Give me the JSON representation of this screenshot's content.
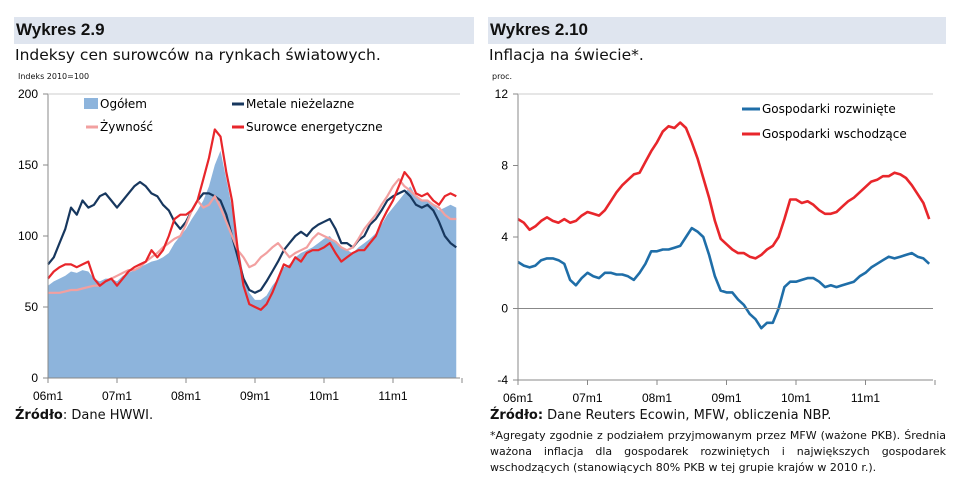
{
  "left": {
    "title": "Wykres 2.9",
    "subtitle": "Indeksy cen surowców na rynkach światowych.",
    "unit": "Indeks 2010=100",
    "source_label": "Źródło",
    "source_text": ": Dane HWWI."
  },
  "right": {
    "title": "Wykres 2.10",
    "subtitle": "Inflacja na świecie*.",
    "unit": "proc.",
    "source_label": "Źródło:",
    "source_text": " Dane Reuters Ecowin, MFW, obliczenia NBP.",
    "note": "*Agregaty zgodnie z podziałem przyjmowanym przez MFW (ważone PKB). Średnia ważona inflacja dla gospodarek rozwiniętych i największych gospodarek wschodzących (stanowiących 80% PKB w tej grupie krajów w 2010 r.)."
  },
  "chart_data": [
    {
      "type": "line",
      "title": "Indeksy cen surowców na rynkach światowych.",
      "ylabel": "Indeks 2010=100",
      "ylim": [
        0,
        200
      ],
      "yticks": [
        0,
        50,
        100,
        150,
        200
      ],
      "xticks": [
        "06m1",
        "07m1",
        "08m1",
        "09m1",
        "10m1",
        "11m1"
      ],
      "x_frequency": "monthly 2006-01..2011-12",
      "legend": "top",
      "series": [
        {
          "name": "Ogółem",
          "kind": "area",
          "color": "#8db4dc",
          "values": [
            65,
            68,
            70,
            72,
            75,
            74,
            76,
            75,
            70,
            68,
            70,
            70,
            68,
            72,
            74,
            76,
            78,
            80,
            82,
            83,
            85,
            88,
            95,
            100,
            105,
            112,
            118,
            125,
            135,
            150,
            160,
            140,
            120,
            95,
            72,
            60,
            55,
            55,
            58,
            65,
            70,
            78,
            80,
            85,
            88,
            90,
            92,
            95,
            98,
            100,
            95,
            92,
            90,
            88,
            92,
            95,
            98,
            102,
            108,
            115,
            120,
            125,
            130,
            135,
            128,
            125,
            125,
            122,
            118,
            120,
            122,
            120
          ]
        },
        {
          "name": "Metale nieżelazne",
          "kind": "line",
          "color": "#17375e",
          "values": [
            80,
            85,
            95,
            105,
            120,
            115,
            125,
            120,
            122,
            128,
            130,
            125,
            120,
            125,
            130,
            135,
            138,
            135,
            130,
            128,
            122,
            118,
            110,
            105,
            110,
            118,
            125,
            130,
            130,
            128,
            125,
            115,
            100,
            85,
            70,
            62,
            60,
            62,
            68,
            75,
            82,
            90,
            95,
            100,
            103,
            100,
            105,
            108,
            110,
            112,
            105,
            95,
            95,
            92,
            97,
            100,
            108,
            112,
            118,
            125,
            128,
            130,
            132,
            128,
            122,
            120,
            122,
            118,
            110,
            100,
            95,
            92
          ]
        },
        {
          "name": "Żywność",
          "kind": "line",
          "color": "#f2a0a0",
          "values": [
            60,
            60,
            60,
            61,
            62,
            62,
            63,
            64,
            65,
            65,
            68,
            70,
            72,
            74,
            76,
            76,
            78,
            82,
            85,
            88,
            92,
            95,
            98,
            100,
            108,
            118,
            125,
            120,
            122,
            128,
            120,
            110,
            100,
            90,
            85,
            78,
            80,
            85,
            88,
            92,
            95,
            90,
            85,
            88,
            90,
            92,
            98,
            102,
            100,
            98,
            96,
            92,
            90,
            92,
            98,
            105,
            110,
            115,
            122,
            128,
            135,
            140,
            135,
            132,
            128,
            125,
            125,
            122,
            120,
            115,
            112,
            112
          ]
        },
        {
          "name": "Surowce energetyczne",
          "kind": "line",
          "color": "#e8262b",
          "values": [
            70,
            75,
            78,
            80,
            80,
            78,
            80,
            82,
            70,
            65,
            68,
            70,
            65,
            70,
            75,
            78,
            80,
            82,
            90,
            85,
            90,
            100,
            112,
            115,
            115,
            118,
            125,
            140,
            155,
            175,
            170,
            145,
            125,
            90,
            65,
            52,
            50,
            48,
            52,
            60,
            70,
            80,
            78,
            85,
            82,
            88,
            90,
            90,
            92,
            95,
            88,
            82,
            85,
            88,
            90,
            90,
            95,
            100,
            110,
            118,
            125,
            135,
            145,
            140,
            130,
            128,
            130,
            125,
            122,
            128,
            130,
            128
          ]
        }
      ]
    },
    {
      "type": "line",
      "title": "Inflacja na świecie*.",
      "ylabel": "proc.",
      "ylim": [
        -4,
        12
      ],
      "yticks": [
        -4,
        0,
        4,
        8,
        12
      ],
      "xticks": [
        "06m1",
        "07m1",
        "08m1",
        "09m1",
        "10m1",
        "11m1"
      ],
      "x_frequency": "monthly 2006-01..2011-12",
      "legend": "top-right",
      "series": [
        {
          "name": "Gospodarki rozwinięte",
          "kind": "line",
          "color": "#1f6ea8",
          "values": [
            2.6,
            2.4,
            2.3,
            2.4,
            2.7,
            2.8,
            2.8,
            2.7,
            2.5,
            1.6,
            1.3,
            1.7,
            2.0,
            1.8,
            1.7,
            2.0,
            2.0,
            1.9,
            1.9,
            1.8,
            1.6,
            2.0,
            2.5,
            3.2,
            3.2,
            3.3,
            3.3,
            3.4,
            3.5,
            4.0,
            4.5,
            4.3,
            4.0,
            3.0,
            1.8,
            1.0,
            0.9,
            0.9,
            0.5,
            0.2,
            -0.3,
            -0.6,
            -1.1,
            -0.8,
            -0.8,
            0.0,
            1.2,
            1.5,
            1.5,
            1.6,
            1.7,
            1.7,
            1.5,
            1.2,
            1.3,
            1.2,
            1.3,
            1.4,
            1.5,
            1.8,
            2.0,
            2.3,
            2.5,
            2.7,
            2.9,
            2.8,
            2.9,
            3.0,
            3.1,
            2.9,
            2.8,
            2.5
          ]
        },
        {
          "name": "Gospodarki wschodzące",
          "kind": "line",
          "color": "#e8262b",
          "values": [
            5.0,
            4.8,
            4.4,
            4.6,
            4.9,
            5.1,
            4.9,
            4.8,
            5.0,
            4.8,
            4.9,
            5.2,
            5.4,
            5.3,
            5.2,
            5.5,
            6.0,
            6.5,
            6.9,
            7.2,
            7.5,
            7.6,
            8.2,
            8.8,
            9.3,
            9.9,
            10.2,
            10.1,
            10.4,
            10.1,
            9.3,
            8.4,
            7.3,
            6.2,
            4.9,
            3.9,
            3.6,
            3.3,
            3.1,
            3.1,
            2.9,
            2.8,
            3.0,
            3.3,
            3.5,
            4.0,
            5.0,
            6.1,
            6.1,
            5.9,
            6.0,
            5.8,
            5.5,
            5.3,
            5.3,
            5.4,
            5.7,
            6.0,
            6.2,
            6.5,
            6.8,
            7.1,
            7.2,
            7.4,
            7.4,
            7.6,
            7.5,
            7.3,
            6.9,
            6.4,
            5.9,
            5.0
          ]
        }
      ]
    }
  ]
}
